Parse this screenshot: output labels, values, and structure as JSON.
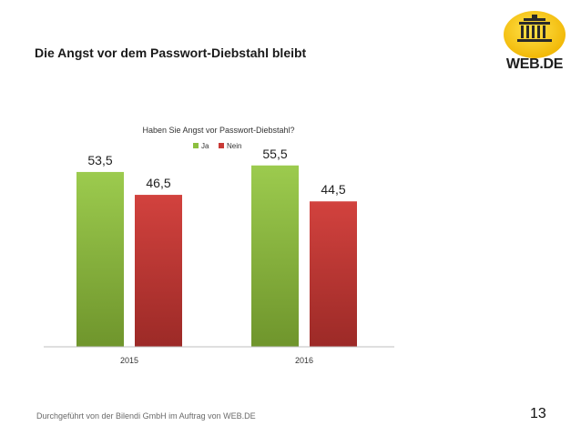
{
  "slide": {
    "title": "Die Angst vor dem Passwort-Diebstahl bleibt",
    "footer": "Durchgeführt von der Bilendi GmbH im Auftrag von WEB.DE",
    "page_number": "13"
  },
  "logo": {
    "text": "WEB.DE",
    "icon": "brandenburg-gate-icon",
    "color": "#f5c400"
  },
  "colors": {
    "ja": "#8cbf3f",
    "nein": "#c93a36"
  },
  "chart_data": {
    "type": "bar",
    "title": "Haben Sie Angst vor Passwort-Diebstahl?",
    "categories": [
      "2015",
      "2016"
    ],
    "series": [
      {
        "name": "Ja",
        "values": [
          53.5,
          55.5
        ],
        "labels": [
          "53,5",
          "55,5"
        ]
      },
      {
        "name": "Nein",
        "values": [
          46.5,
          44.5
        ],
        "labels": [
          "46,5",
          "44,5"
        ]
      }
    ],
    "ylim": [
      0,
      100
    ],
    "grid": false,
    "legend": "top",
    "xlabel": "",
    "ylabel": ""
  }
}
